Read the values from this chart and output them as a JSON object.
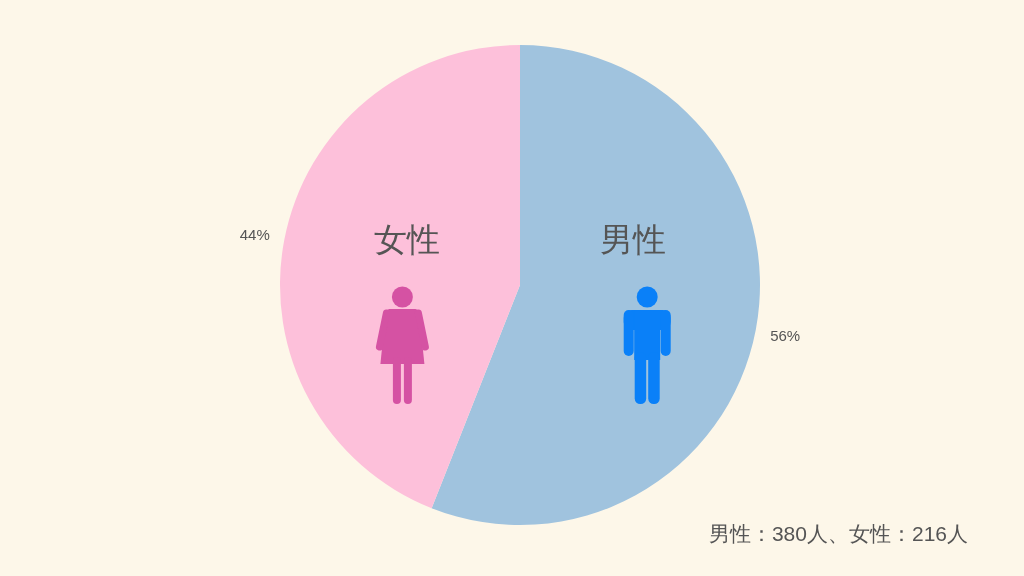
{
  "chart_data": {
    "type": "pie",
    "categories": [
      "男性",
      "女性"
    ],
    "values": [
      56,
      44
    ],
    "colors": [
      "#a0c3de",
      "#fdc0da"
    ],
    "value_labels": [
      "56%",
      "44%"
    ],
    "annotations": [
      "男性：380人、女性：216人"
    ]
  }
}
